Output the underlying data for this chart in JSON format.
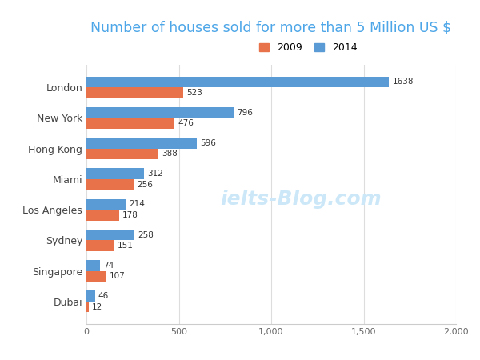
{
  "title": "Number of houses sold for more than 5 Million US $",
  "title_color": "#4da6e8",
  "cities": [
    "London",
    "New York",
    "Hong Kong",
    "Miami",
    "Los Angeles",
    "Sydney",
    "Singapore",
    "Dubai"
  ],
  "values_2009": [
    523,
    476,
    388,
    256,
    178,
    151,
    107,
    12
  ],
  "values_2014": [
    1638,
    796,
    596,
    312,
    214,
    258,
    74,
    46
  ],
  "color_2009": "#E8734A",
  "color_2014": "#5B9BD5",
  "xlim": [
    0,
    2000
  ],
  "xticks": [
    0,
    500,
    1000,
    1500,
    2000
  ],
  "xtick_labels": [
    "0",
    "500",
    "1,000",
    "1,500",
    "2,000"
  ],
  "bar_height": 0.35,
  "legend_labels": [
    "2009",
    "2014"
  ],
  "background_color": "#ffffff",
  "watermark": "ielts-Blog.com",
  "watermark_color": "#cce8f8"
}
